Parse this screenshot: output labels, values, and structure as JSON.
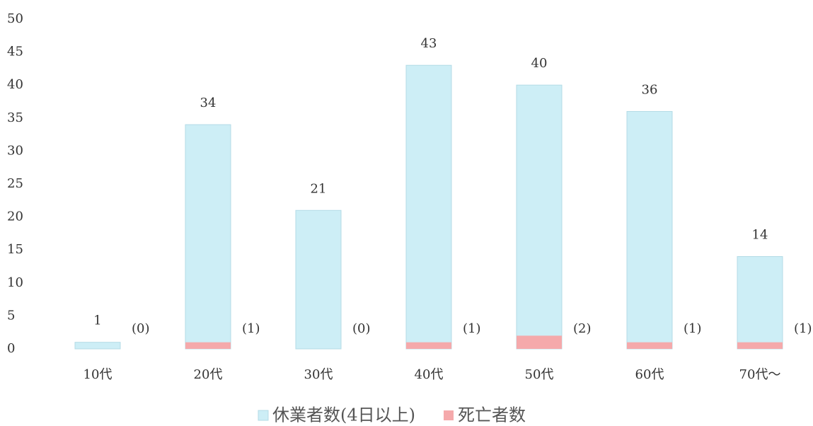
{
  "chart_data": {
    "type": "bar",
    "categories": [
      "10代",
      "20代",
      "30代",
      "40代",
      "50代",
      "60代",
      "70代～"
    ],
    "series": [
      {
        "name": "休業者数(4日以上)",
        "color": "#cdeef6",
        "values": [
          1,
          34,
          21,
          43,
          40,
          36,
          14
        ]
      },
      {
        "name": "死亡者数",
        "color": "#f5a9ab",
        "values": [
          0,
          1,
          0,
          1,
          2,
          1,
          1
        ],
        "value_labels": [
          "(0)",
          "(1)",
          "(0)",
          "(1)",
          "(2)",
          "(1)",
          "(1)"
        ]
      }
    ],
    "ylim": [
      0,
      50
    ],
    "yticks": [
      0,
      5,
      10,
      15,
      20,
      25,
      30,
      35,
      40,
      45,
      50
    ],
    "grid": false,
    "legend": "bottom"
  }
}
